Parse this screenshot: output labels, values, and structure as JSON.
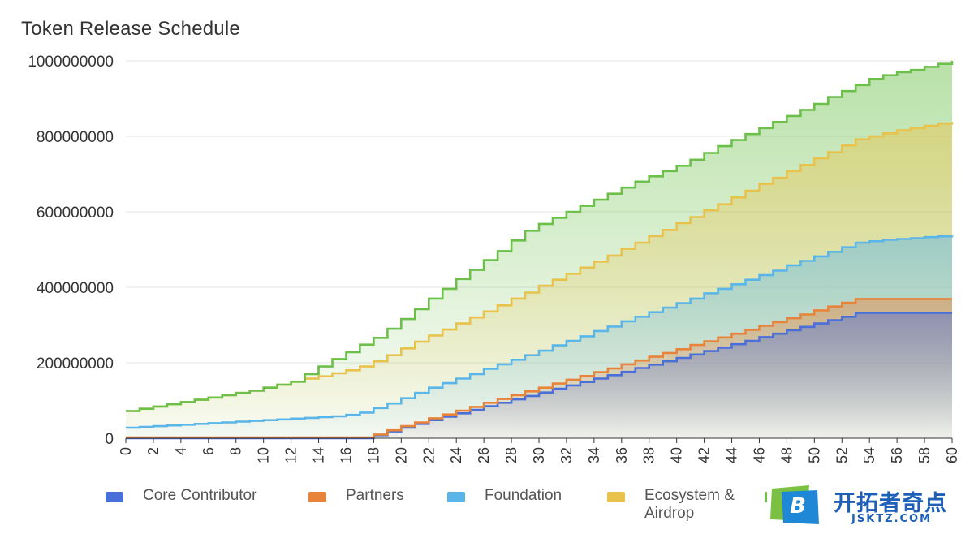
{
  "page": {
    "title": "Token Release Schedule"
  },
  "chart_data": {
    "type": "area",
    "stacked": true,
    "step": true,
    "title": "Token Release Schedule",
    "xlabel": "",
    "ylabel": "",
    "xlim": [
      0,
      60
    ],
    "ylim": [
      0,
      1000000000
    ],
    "x_tick_labels": [
      "0",
      "2",
      "4",
      "6",
      "8",
      "10",
      "12",
      "14",
      "16",
      "18",
      "20",
      "22",
      "24",
      "26",
      "28",
      "30",
      "32",
      "34",
      "36",
      "38",
      "40",
      "42",
      "44",
      "46",
      "48",
      "50",
      "52",
      "54",
      "56",
      "58",
      "60"
    ],
    "y_tick_labels": [
      "0",
      "200000000",
      "400000000",
      "600000000",
      "800000000",
      "1000000000"
    ],
    "grid": true,
    "legend_position": "bottom",
    "x": [
      0,
      1,
      2,
      3,
      4,
      5,
      6,
      7,
      8,
      9,
      10,
      11,
      12,
      13,
      14,
      15,
      16,
      17,
      18,
      19,
      20,
      21,
      22,
      23,
      24,
      25,
      26,
      27,
      28,
      29,
      30,
      31,
      32,
      33,
      34,
      35,
      36,
      37,
      38,
      39,
      40,
      41,
      42,
      43,
      44,
      45,
      46,
      47,
      48,
      49,
      50,
      51,
      52,
      53,
      54,
      55,
      56,
      57,
      58,
      59,
      60
    ],
    "series": [
      {
        "name": "Core Contributor",
        "color": "#4a6fd8",
        "cumulative": [
          0,
          0,
          0,
          0,
          0,
          0,
          0,
          0,
          0,
          0,
          0,
          0,
          0,
          0,
          0,
          0,
          0,
          0,
          8000000,
          18000000,
          28000000,
          38000000,
          48000000,
          57000000,
          66000000,
          75000000,
          85000000,
          94000000,
          103000000,
          112000000,
          121000000,
          131000000,
          140000000,
          149000000,
          158000000,
          167000000,
          176000000,
          186000000,
          195000000,
          204000000,
          213000000,
          222000000,
          231000000,
          240000000,
          249000000,
          258000000,
          268000000,
          277000000,
          286000000,
          295000000,
          304000000,
          313000000,
          322000000,
          332000000,
          332000000,
          332000000,
          332000000,
          332000000,
          332000000,
          332000000,
          332000000
        ]
      },
      {
        "name": "Partners",
        "color": "#e8843a",
        "cumulative": [
          2000000,
          2000000,
          2000000,
          2000000,
          2000000,
          2000000,
          2000000,
          2000000,
          2000000,
          2000000,
          2000000,
          2000000,
          2000000,
          2000000,
          2000000,
          2000000,
          2000000,
          2000000,
          10000000,
          21000000,
          32000000,
          42000000,
          53000000,
          63000000,
          73000000,
          83000000,
          94000000,
          104000000,
          114000000,
          124000000,
          134000000,
          145000000,
          155000000,
          165000000,
          175000000,
          185000000,
          196000000,
          206000000,
          216000000,
          226000000,
          236000000,
          247000000,
          257000000,
          267000000,
          277000000,
          287000000,
          298000000,
          308000000,
          318000000,
          328000000,
          339000000,
          349000000,
          359000000,
          369000000,
          369000000,
          369000000,
          369000000,
          369000000,
          369000000,
          369000000,
          369000000
        ]
      },
      {
        "name": "Foundation",
        "color": "#5ab6e8",
        "cumulative": [
          28000000,
          30000000,
          32000000,
          34000000,
          36000000,
          38000000,
          40000000,
          42000000,
          44000000,
          46000000,
          48000000,
          50000000,
          52000000,
          54000000,
          56000000,
          58000000,
          62000000,
          68000000,
          80000000,
          92000000,
          106000000,
          120000000,
          134000000,
          146000000,
          158000000,
          170000000,
          184000000,
          196000000,
          208000000,
          220000000,
          232000000,
          246000000,
          258000000,
          270000000,
          284000000,
          296000000,
          310000000,
          322000000,
          334000000,
          346000000,
          358000000,
          370000000,
          384000000,
          396000000,
          408000000,
          420000000,
          432000000,
          444000000,
          458000000,
          470000000,
          482000000,
          494000000,
          506000000,
          518000000,
          522000000,
          526000000,
          528000000,
          530000000,
          533000000,
          535000000,
          537000000
        ]
      },
      {
        "name": "Ecosystem & Airdrop",
        "color": "#e8c24a",
        "cumulative": [
          72000000,
          78000000,
          84000000,
          90000000,
          96000000,
          102000000,
          108000000,
          114000000,
          120000000,
          126000000,
          134000000,
          142000000,
          150000000,
          158000000,
          164000000,
          172000000,
          180000000,
          190000000,
          204000000,
          220000000,
          238000000,
          256000000,
          272000000,
          288000000,
          304000000,
          320000000,
          336000000,
          352000000,
          370000000,
          386000000,
          404000000,
          420000000,
          436000000,
          452000000,
          468000000,
          484000000,
          502000000,
          518000000,
          536000000,
          552000000,
          570000000,
          586000000,
          604000000,
          620000000,
          638000000,
          656000000,
          674000000,
          690000000,
          708000000,
          724000000,
          742000000,
          758000000,
          776000000,
          792000000,
          800000000,
          808000000,
          816000000,
          822000000,
          828000000,
          834000000,
          838000000
        ]
      },
      {
        "name": "",
        "color": "#6cc04a",
        "cumulative": [
          72000000,
          78000000,
          84000000,
          90000000,
          96000000,
          102000000,
          108000000,
          114000000,
          120000000,
          126000000,
          134000000,
          142000000,
          150000000,
          170000000,
          190000000,
          210000000,
          228000000,
          248000000,
          266000000,
          290000000,
          316000000,
          342000000,
          370000000,
          396000000,
          422000000,
          446000000,
          472000000,
          496000000,
          524000000,
          550000000,
          568000000,
          584000000,
          600000000,
          616000000,
          632000000,
          648000000,
          664000000,
          680000000,
          694000000,
          708000000,
          722000000,
          738000000,
          756000000,
          774000000,
          790000000,
          806000000,
          822000000,
          838000000,
          854000000,
          870000000,
          886000000,
          904000000,
          920000000,
          936000000,
          952000000,
          962000000,
          970000000,
          976000000,
          984000000,
          992000000,
          1000000000
        ]
      }
    ]
  },
  "legend": {
    "items": [
      {
        "label": "Core Contributor",
        "color": "#4a6fd8"
      },
      {
        "label": "Partners",
        "color": "#e8843a"
      },
      {
        "label": "Foundation",
        "color": "#5ab6e8"
      },
      {
        "label": "Ecosystem &\nAirdrop",
        "color": "#e8c24a"
      },
      {
        "label": "",
        "color": "#6cc04a"
      }
    ]
  },
  "watermark": {
    "text_cn": "开拓者奇点",
    "text_en": "JSKTZ.COM",
    "logo_letter": "B"
  }
}
